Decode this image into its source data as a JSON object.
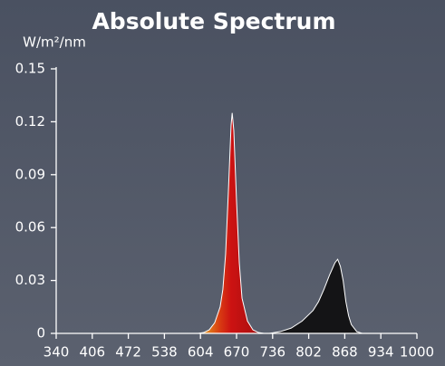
{
  "chart_data": {
    "type": "area",
    "title": "Absolute Spectrum",
    "y_label": "W/m²/nm",
    "x": [
      340,
      600,
      610,
      620,
      630,
      640,
      645,
      650,
      655,
      660,
      662,
      665,
      670,
      675,
      680,
      690,
      700,
      710,
      720,
      730,
      750,
      770,
      790,
      810,
      820,
      830,
      840,
      850,
      855,
      860,
      865,
      870,
      875,
      880,
      890,
      900,
      1000
    ],
    "values": [
      0,
      0,
      0.0005,
      0.002,
      0.006,
      0.015,
      0.025,
      0.045,
      0.08,
      0.118,
      0.125,
      0.115,
      0.075,
      0.04,
      0.02,
      0.007,
      0.002,
      0.0005,
      0,
      0,
      0.001,
      0.003,
      0.007,
      0.013,
      0.018,
      0.025,
      0.033,
      0.04,
      0.042,
      0.038,
      0.03,
      0.018,
      0.01,
      0.005,
      0.001,
      0,
      0
    ],
    "line_color": "#ffffff",
    "spectrum_colors": [
      {
        "value": 615,
        "color": "#e0841a"
      },
      {
        "value": 640,
        "color": "#d83a12"
      },
      {
        "value": 660,
        "color": "#cc1212"
      },
      {
        "value": 700,
        "color": "#b01010"
      },
      {
        "value": 725,
        "color": "#141416"
      },
      {
        "value": 1000,
        "color": "#141416"
      }
    ],
    "xlim": [
      340,
      1000
    ],
    "xticks": [
      340,
      406,
      472,
      538,
      604,
      670,
      736,
      802,
      868,
      934,
      1000
    ],
    "ylim": [
      0,
      0.15
    ],
    "yticks": [
      0,
      0.03,
      0.06,
      0.09,
      0.12,
      0.15
    ],
    "grid": false
  }
}
